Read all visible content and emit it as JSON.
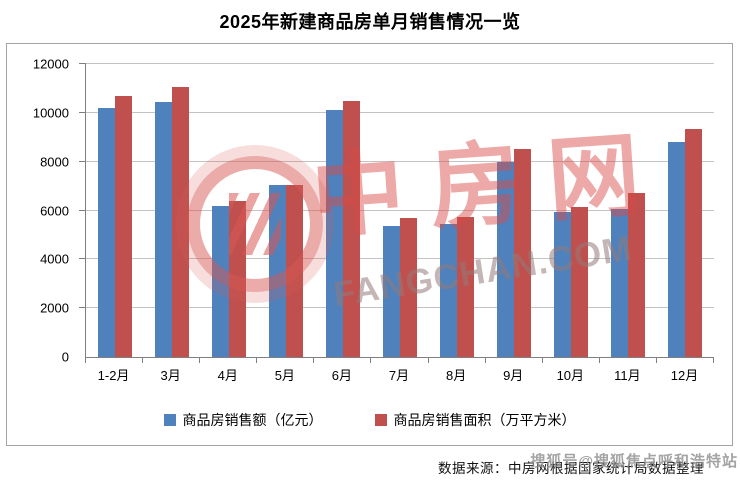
{
  "title": "2025年新建商品房单月销售情况一览",
  "chart_data": {
    "type": "bar",
    "title": "2025年新建商品房单月销售情况一览",
    "categories": [
      "1-2月",
      "3月",
      "4月",
      "5月",
      "6月",
      "7月",
      "8月",
      "9月",
      "10月",
      "11月",
      "12月"
    ],
    "series": [
      {
        "name": "商品房销售额（亿元）",
        "color": "#4F81BD",
        "values": [
          10200,
          10450,
          6200,
          7050,
          10100,
          5350,
          5450,
          8000,
          5950,
          6050,
          8800
        ]
      },
      {
        "name": "商品房销售面积（万平方米）",
        "color": "#C0504D",
        "values": [
          10700,
          11050,
          6400,
          7050,
          10500,
          5700,
          5750,
          8500,
          6150,
          6700,
          9350
        ]
      }
    ],
    "xlabel": "",
    "ylabel": "",
    "ylim": [
      0,
      12000
    ],
    "yticks": [
      0,
      2000,
      4000,
      6000,
      8000,
      10000,
      12000
    ],
    "grid": true,
    "legend_position": "bottom"
  },
  "watermark": {
    "cn": "中房网",
    "en": "FANGCHAN.COM",
    "logo_icon": "at-swirl-logo",
    "color": "#D85854"
  },
  "footer": {
    "source": "数据来源：中房网根据国家统计局数据整理",
    "sohu_watermark": "搜狐号@搜狐焦点呼和浩特站"
  }
}
